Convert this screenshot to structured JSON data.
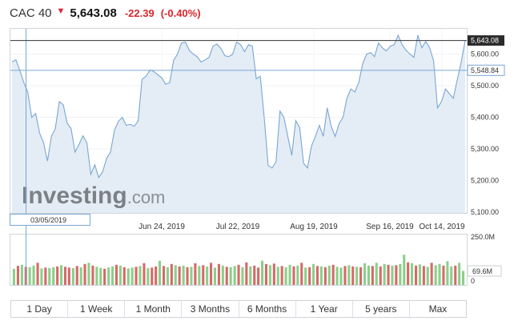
{
  "header": {
    "name": "CAC 40",
    "price": "5,643.08",
    "change": "-22.39",
    "change_pct": "(-0.40%)",
    "direction_icon": "down-arrow-icon",
    "down_color": "#d9262b"
  },
  "watermark": {
    "brand": "Investing",
    "suffix": ".com"
  },
  "crosshair": {
    "date_label": "03/05/2019",
    "value_label": "5,548.84",
    "value": 5548.84
  },
  "last_price": {
    "label": "5,643.08",
    "value": 5643.08
  },
  "volume_panel": {
    "max_label": "250.0M",
    "zero_label": "0",
    "last_label": "69.6M"
  },
  "timeframes": [
    "1 Day",
    "1 Week",
    "1 Month",
    "3 Months",
    "6 Months",
    "1 Year",
    "5 years",
    "Max"
  ],
  "chart_data": {
    "type": "area",
    "x_ticks": [
      "Jun 24, 2019",
      "Jul 22, 2019",
      "Aug 19, 2019",
      "Sep 16, 2019",
      "Oct 14, 2019"
    ],
    "y_ticks": [
      5100,
      5200,
      5300,
      5400,
      5500,
      5600
    ],
    "y_tick_labels": [
      "5,100.00",
      "5,200.00",
      "5,300.00",
      "5,400.00",
      "5,500.00",
      "5,600.00"
    ],
    "ylim": [
      5098,
      5680
    ],
    "line_color": "#7aa6d4",
    "fill_color": "#e4edf5",
    "series": [
      {
        "values": [
          5575,
          5582,
          5548,
          5510,
          5480,
          5400,
          5412,
          5350,
          5320,
          5262,
          5340,
          5365,
          5450,
          5440,
          5382,
          5365,
          5290,
          5315,
          5342,
          5320,
          5220,
          5250,
          5210,
          5228,
          5270,
          5290,
          5360,
          5388,
          5400,
          5375,
          5378,
          5372,
          5388,
          5520,
          5530,
          5550,
          5545,
          5535,
          5525,
          5505,
          5510,
          5580,
          5600,
          5635,
          5638,
          5612,
          5600,
          5592,
          5575,
          5582,
          5590,
          5625,
          5632,
          5618,
          5595,
          5592,
          5600,
          5638,
          5630,
          5608,
          5630,
          5625,
          5522,
          5530,
          5400,
          5248,
          5240,
          5260,
          5420,
          5400,
          5340,
          5280,
          5390,
          5368,
          5255,
          5240,
          5310,
          5340,
          5375,
          5340,
          5430,
          5372,
          5340,
          5380,
          5400,
          5460,
          5490,
          5480,
          5510,
          5570,
          5600,
          5605,
          5592,
          5635,
          5620,
          5610,
          5625,
          5630,
          5660,
          5630,
          5612,
          5600,
          5590,
          5660,
          5620,
          5640,
          5620,
          5578,
          5430,
          5450,
          5490,
          5475,
          5460,
          5520,
          5575,
          5643
        ]
      }
    ],
    "volume": [
      80,
      95,
      100,
      90,
      88,
      96,
      110,
      82,
      86,
      84,
      88,
      92,
      98,
      90,
      86,
      84,
      94,
      88,
      104,
      110,
      96,
      90,
      84,
      80,
      86,
      92,
      100,
      96,
      88,
      82,
      86,
      90,
      94,
      108,
      84,
      86,
      92,
      120,
      94,
      88,
      104,
      98,
      92,
      96,
      88,
      90,
      108,
      94,
      98,
      92,
      110,
      86,
      104,
      96,
      90,
      88,
      94,
      100,
      88,
      112,
      92,
      96,
      86,
      120,
      104,
      98,
      106,
      90,
      94,
      88,
      100,
      92,
      96,
      110,
      86,
      88,
      104,
      94,
      92,
      88,
      96,
      100,
      90,
      86,
      94,
      98,
      92,
      90,
      88,
      108,
      96,
      94,
      110,
      92,
      104,
      100,
      96,
      98,
      104,
      150,
      112,
      108,
      96,
      102,
      94,
      90,
      110,
      98,
      104,
      96,
      118,
      92,
      96,
      110,
      70
    ],
    "volume_dir": [
      "u",
      "d",
      "u",
      "d",
      "u",
      "u",
      "d",
      "u",
      "d",
      "u",
      "u",
      "d",
      "u",
      "d",
      "d",
      "u",
      "d",
      "u",
      "d",
      "u",
      "d",
      "u",
      "u",
      "d",
      "u",
      "u",
      "d",
      "u",
      "d",
      "u",
      "u",
      "d",
      "u",
      "d",
      "u",
      "d",
      "d",
      "u",
      "d",
      "u",
      "d",
      "u",
      "d",
      "u",
      "d",
      "u",
      "d",
      "u",
      "d",
      "u",
      "d",
      "u",
      "d",
      "u",
      "d",
      "u",
      "u",
      "d",
      "u",
      "d",
      "u",
      "d",
      "d",
      "u",
      "d",
      "u",
      "d",
      "u",
      "d",
      "u",
      "u",
      "d",
      "u",
      "d",
      "u",
      "d",
      "u",
      "d",
      "u",
      "d",
      "u",
      "d",
      "u",
      "u",
      "d",
      "u",
      "d",
      "u",
      "d",
      "u",
      "u",
      "d",
      "u",
      "d",
      "u",
      "d",
      "u",
      "d",
      "u",
      "u",
      "d",
      "u",
      "d",
      "u",
      "d",
      "u",
      "d",
      "u",
      "u",
      "d",
      "u",
      "u",
      "d",
      "u",
      "u",
      "d"
    ],
    "volume_up_color": "#8ccf8a",
    "volume_down_color": "#d46a6a",
    "ylim_volume": [
      0,
      250
    ]
  }
}
